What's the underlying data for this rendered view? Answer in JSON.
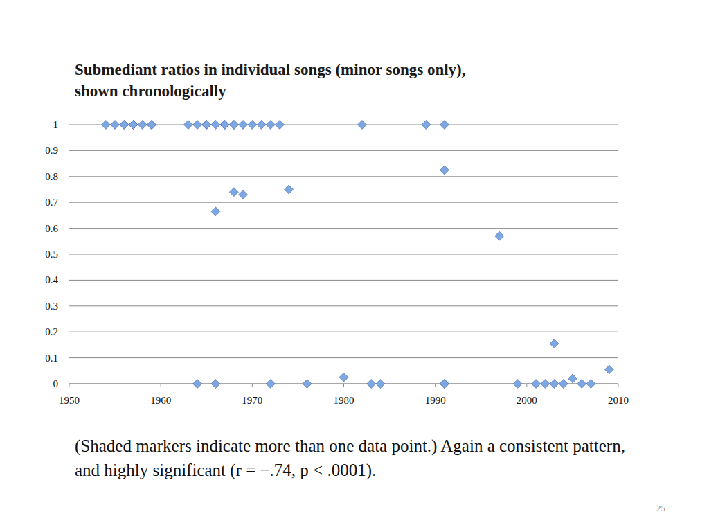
{
  "chart_data": {
    "type": "scatter",
    "title": "Submediant ratios in individual songs (minor songs only), shown chronologically",
    "caption": "(Shaded markers indicate more than one data point.) Again a consistent pattern, and highly significant (r = −.74, p < .0001).",
    "page_number": "25",
    "x": [
      1954,
      1955,
      1956,
      1956,
      1957,
      1957,
      1958,
      1959,
      1959,
      1963,
      1964,
      1964,
      1965,
      1965,
      1966,
      1966,
      1966,
      1967,
      1967,
      1968,
      1968,
      1968,
      1969,
      1969,
      1970,
      1971,
      1972,
      1972,
      1973,
      1974,
      1976,
      1980,
      1982,
      1983,
      1984,
      1989,
      1991,
      1991,
      1991,
      1991,
      1997,
      1999,
      2001,
      2002,
      2003,
      2003,
      2004,
      2005,
      2006,
      2007,
      2009
    ],
    "values": [
      1,
      1,
      1,
      1,
      1,
      1,
      1,
      1,
      1,
      1,
      1,
      0,
      1,
      1,
      1,
      0.665,
      0,
      1,
      1,
      1,
      1,
      0.74,
      1,
      0.73,
      1,
      1,
      1,
      0,
      1,
      0.75,
      0,
      0.025,
      1,
      0,
      0,
      1,
      1,
      0.825,
      0,
      0,
      0.57,
      0,
      0,
      0,
      0,
      0.155,
      0,
      0.02,
      0,
      0,
      0.055
    ],
    "color": "#7ea6e0",
    "marker": "diamond",
    "xlim": [
      1950,
      2010
    ],
    "xticks": [
      1950,
      1960,
      1970,
      1980,
      1990,
      2000,
      2010
    ],
    "ylim": [
      0,
      1
    ],
    "yticks": [
      0,
      0.1,
      0.2,
      0.3,
      0.4,
      0.5,
      0.6,
      0.7,
      0.8,
      0.9,
      1
    ],
    "grid": true
  }
}
